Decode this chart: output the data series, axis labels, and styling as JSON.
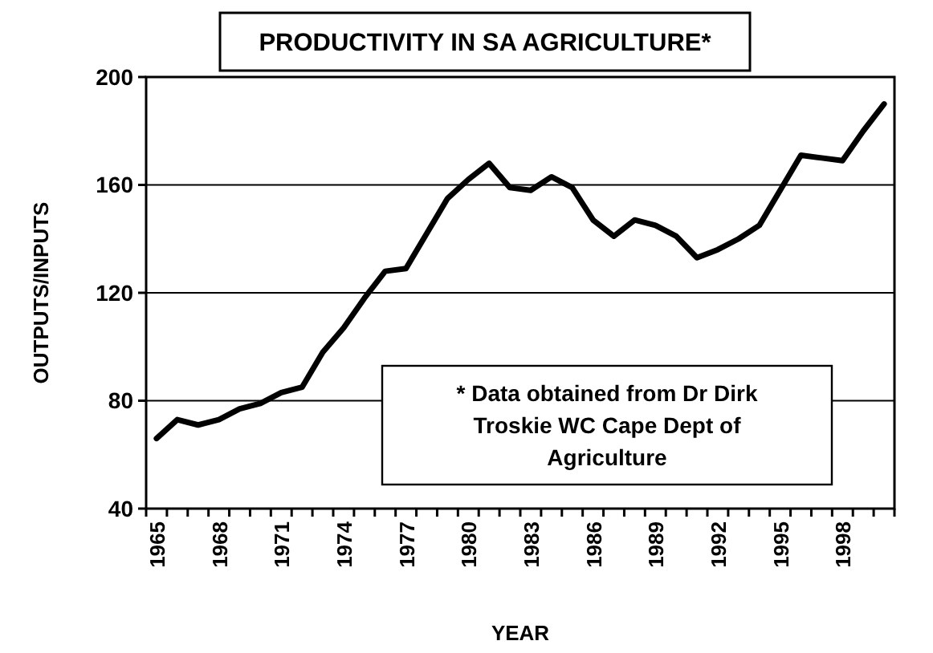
{
  "chart_data": {
    "type": "line",
    "title": "PRODUCTIVITY IN SA AGRICULTURE*",
    "xlabel": "YEAR",
    "ylabel": "OUTPUTS/INPUTS",
    "categories": [
      "1965",
      null,
      null,
      "1968",
      null,
      null,
      "1971",
      null,
      null,
      "1974",
      null,
      null,
      "1977",
      null,
      null,
      "1980",
      null,
      null,
      "1983",
      null,
      null,
      "1986",
      null,
      null,
      "1989",
      null,
      null,
      "1992",
      null,
      null,
      "1995",
      null,
      null,
      "1998",
      null,
      null
    ],
    "series": [
      {
        "color": "#000000",
        "values": [
          66,
          73,
          71,
          73,
          77,
          79,
          83,
          85,
          98,
          107,
          118,
          128,
          129,
          142,
          155,
          162,
          168,
          159,
          158,
          163,
          159,
          147,
          141,
          147,
          145,
          141,
          133,
          136,
          140,
          145,
          158,
          171,
          170,
          169,
          180,
          190
        ]
      }
    ],
    "ylim": [
      40,
      200
    ],
    "yticks": [
      40,
      80,
      120,
      160,
      200
    ],
    "grid": "y",
    "marker": "none",
    "line_style": "solid",
    "annotations": [
      "* Data obtained from Dr Dirk Troskie WC Cape Dept of Agriculture"
    ]
  }
}
